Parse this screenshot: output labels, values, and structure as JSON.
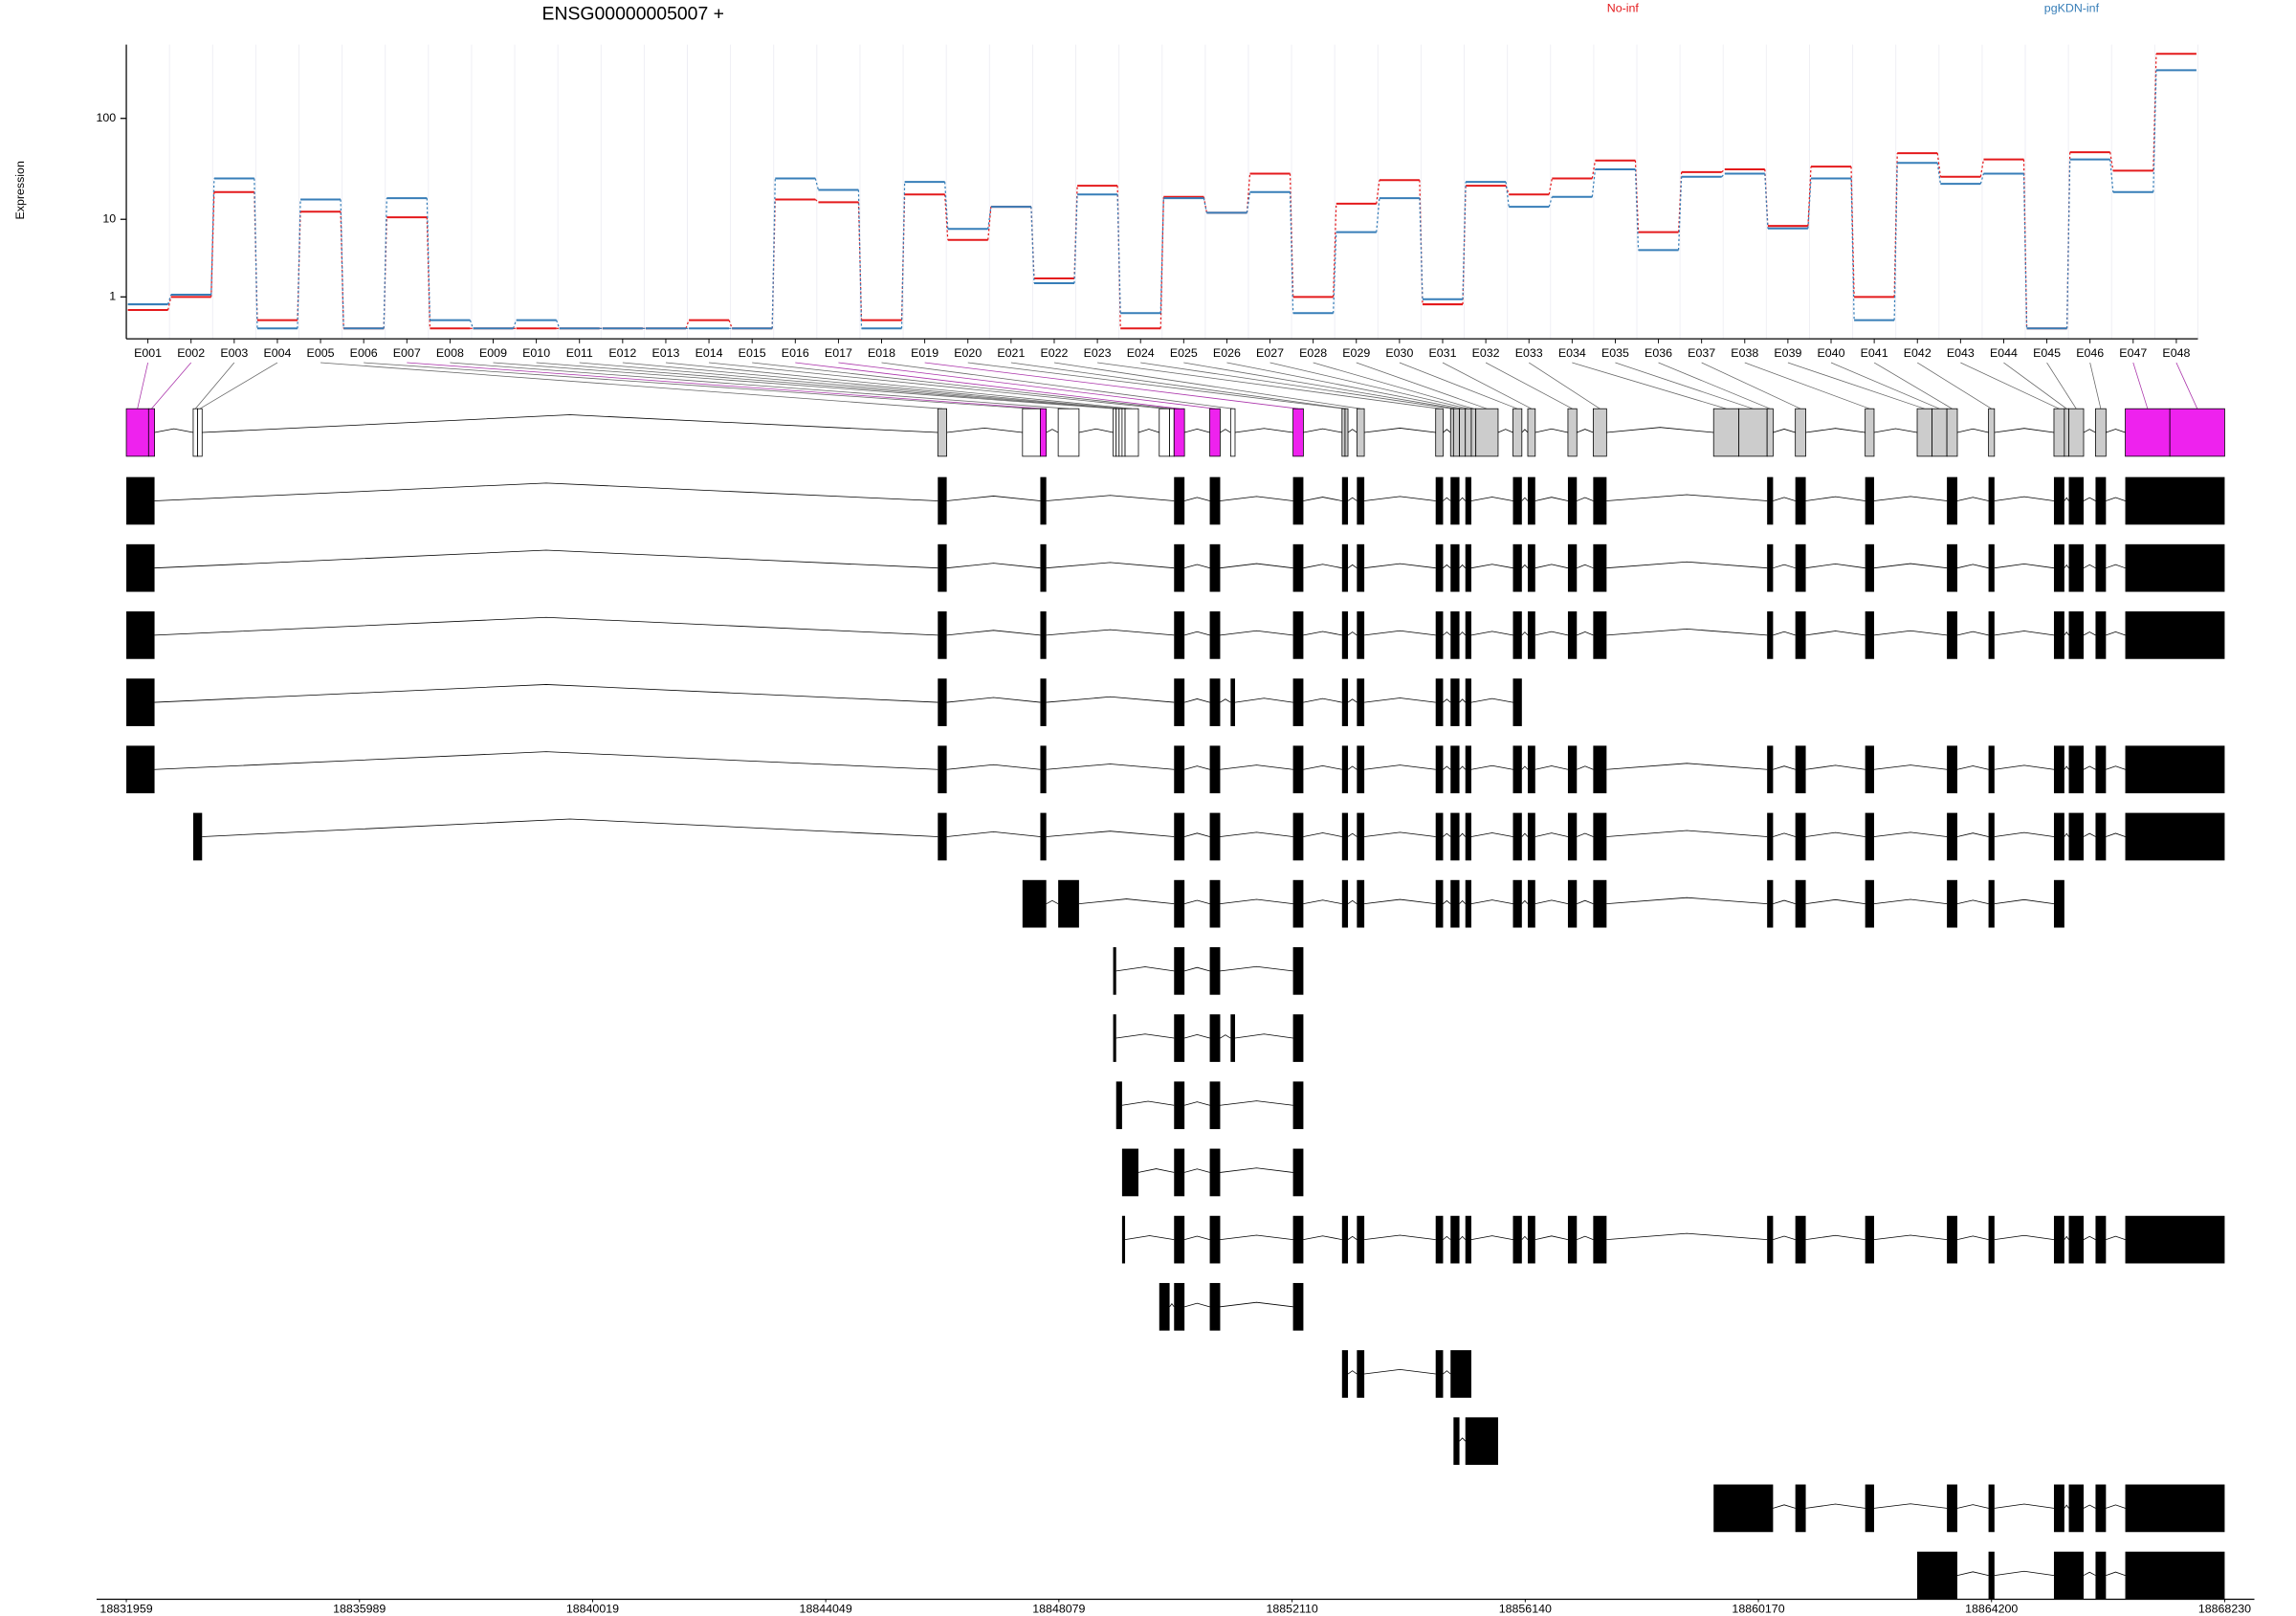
{
  "chart_data": {
    "type": "exon_usage",
    "title": "ENSG00000005007 +",
    "y_label": "Expression",
    "categories": [
      "E001",
      "E002",
      "E003",
      "E004",
      "E005",
      "E006",
      "E007",
      "E008",
      "E009",
      "E010",
      "E011",
      "E012",
      "E013",
      "E014",
      "E015",
      "E016",
      "E017",
      "E018",
      "E019",
      "E020",
      "E021",
      "E022",
      "E023",
      "E024",
      "E025",
      "E026",
      "E027",
      "E028",
      "E029",
      "E030",
      "E031",
      "E032",
      "E033",
      "E034",
      "E035",
      "E036",
      "E037",
      "E038",
      "E039",
      "E040",
      "E041",
      "E042",
      "E043",
      "E044",
      "E045",
      "E046",
      "E047",
      "E048"
    ],
    "series": [
      {
        "name": "No-inf",
        "color": "#e41a1c",
        "values": [
          0.5,
          1.0,
          19,
          0.2,
          12,
          0,
          10.5,
          0,
          0,
          0,
          0,
          0,
          0,
          0.2,
          0,
          16,
          15,
          0.2,
          18,
          6,
          13.5,
          2.0,
          22,
          0,
          17,
          11.7,
          29,
          1.0,
          14.5,
          25,
          0.7,
          22,
          18,
          26,
          39,
          7.3,
          30,
          32,
          8.5,
          34,
          1.0,
          46,
          27,
          40,
          0,
          47,
          31,
          416
        ]
      },
      {
        "name": "pgKDN-inf",
        "color": "#377eb8",
        "values": [
          0.7,
          1.1,
          26,
          0,
          16,
          0,
          16.5,
          0.2,
          0,
          0.2,
          0,
          0,
          0,
          0,
          0,
          26,
          20,
          0,
          24,
          7.9,
          13.5,
          1.7,
          18,
          0.4,
          16.5,
          11.7,
          19,
          0.4,
          7.3,
          16.5,
          0.9,
          24,
          13.5,
          17,
          32,
          4.6,
          27,
          29,
          8,
          26,
          0.2,
          37,
          23,
          29,
          0,
          40,
          19,
          290
        ]
      }
    ],
    "ylim": [
      0,
      510
    ],
    "yticks": [
      1,
      10,
      100
    ],
    "log_offset": 1,
    "grid": true,
    "xlim": [
      18831959,
      18868230
    ],
    "xticks": [
      18831959,
      18835989,
      18840019,
      18844049,
      18848079,
      18852110,
      18856140,
      18860170,
      18864200,
      18868230
    ],
    "exon_bins": [
      {
        "start": 18831959,
        "end": 18832344,
        "color": "#ee22ee"
      },
      {
        "start": 18832344,
        "end": 18832447,
        "color": "#ee22ee"
      },
      {
        "start": 18833115,
        "end": 18833192,
        "color": "#ffffff"
      },
      {
        "start": 18833192,
        "end": 18833269,
        "color": "#ffffff"
      },
      {
        "start": 18845986,
        "end": 18846140,
        "color": "#cccccc"
      },
      {
        "start": 18847450,
        "end": 18847758,
        "color": "#ffffff"
      },
      {
        "start": 18847758,
        "end": 18847861,
        "color": "#ee22ee"
      },
      {
        "start": 18848067,
        "end": 18848427,
        "color": "#ffffff"
      },
      {
        "start": 18849017,
        "end": 18849069,
        "color": "#ffffff"
      },
      {
        "start": 18849069,
        "end": 18849120,
        "color": "#ffffff"
      },
      {
        "start": 18849120,
        "end": 18849171,
        "color": "#ffffff"
      },
      {
        "start": 18849171,
        "end": 18849223,
        "color": "#ffffff"
      },
      {
        "start": 18849223,
        "end": 18849454,
        "color": "#ffffff"
      },
      {
        "start": 18849814,
        "end": 18849993,
        "color": "#ffffff"
      },
      {
        "start": 18849993,
        "end": 18850070,
        "color": "#ffffff"
      },
      {
        "start": 18850070,
        "end": 18850250,
        "color": "#ee22ee"
      },
      {
        "start": 18850687,
        "end": 18850867,
        "color": "#ee22ee"
      },
      {
        "start": 18851047,
        "end": 18851124,
        "color": "#ffffff"
      },
      {
        "start": 18852126,
        "end": 18852305,
        "color": "#ee22ee"
      },
      {
        "start": 18852973,
        "end": 18853025,
        "color": "#cccccc"
      },
      {
        "start": 18853025,
        "end": 18853076,
        "color": "#cccccc"
      },
      {
        "start": 18853230,
        "end": 18853358,
        "color": "#cccccc"
      },
      {
        "start": 18854592,
        "end": 18854720,
        "color": "#cccccc"
      },
      {
        "start": 18854849,
        "end": 18854900,
        "color": "#cccccc"
      },
      {
        "start": 18854900,
        "end": 18855003,
        "color": "#cccccc"
      },
      {
        "start": 18855003,
        "end": 18855105,
        "color": "#cccccc"
      },
      {
        "start": 18855105,
        "end": 18855208,
        "color": "#cccccc"
      },
      {
        "start": 18855208,
        "end": 18855286,
        "color": "#cccccc"
      },
      {
        "start": 18855286,
        "end": 18855671,
        "color": "#cccccc"
      },
      {
        "start": 18855928,
        "end": 18856082,
        "color": "#cccccc"
      },
      {
        "start": 18856184,
        "end": 18856313,
        "color": "#cccccc"
      },
      {
        "start": 18856878,
        "end": 18857032,
        "color": "#cccccc"
      },
      {
        "start": 18857315,
        "end": 18857546,
        "color": "#cccccc"
      },
      {
        "start": 18859396,
        "end": 18859833,
        "color": "#cccccc"
      },
      {
        "start": 18859833,
        "end": 18860321,
        "color": "#cccccc"
      },
      {
        "start": 18860321,
        "end": 18860424,
        "color": "#cccccc"
      },
      {
        "start": 18860809,
        "end": 18860989,
        "color": "#cccccc"
      },
      {
        "start": 18862016,
        "end": 18862170,
        "color": "#cccccc"
      },
      {
        "start": 18862915,
        "end": 18863172,
        "color": "#cccccc"
      },
      {
        "start": 18863172,
        "end": 18863429,
        "color": "#cccccc"
      },
      {
        "start": 18863429,
        "end": 18863609,
        "color": "#cccccc"
      },
      {
        "start": 18864148,
        "end": 18864251,
        "color": "#cccccc"
      },
      {
        "start": 18865279,
        "end": 18865459,
        "color": "#cccccc"
      },
      {
        "start": 18865459,
        "end": 18865536,
        "color": "#cccccc"
      },
      {
        "start": 18865536,
        "end": 18865792,
        "color": "#cccccc"
      },
      {
        "start": 18865998,
        "end": 18866178,
        "color": "#cccccc"
      },
      {
        "start": 18866512,
        "end": 18867283,
        "color": "#ee22ee"
      },
      {
        "start": 18867283,
        "end": 18868230,
        "color": "#ee22ee"
      }
    ],
    "transcripts": [
      [
        0,
        1,
        4,
        6,
        15,
        16,
        18,
        19,
        20,
        21,
        22,
        23,
        24,
        26,
        29,
        30,
        31,
        32,
        35,
        36,
        37,
        40,
        41,
        42,
        44,
        45,
        46,
        47
      ],
      [
        0,
        1,
        4,
        6,
        15,
        16,
        18,
        19,
        20,
        21,
        22,
        23,
        24,
        26,
        29,
        30,
        31,
        32,
        35,
        36,
        37,
        40,
        41,
        42,
        44,
        45,
        46,
        47
      ],
      [
        0,
        1,
        4,
        6,
        15,
        16,
        18,
        19,
        20,
        21,
        22,
        23,
        24,
        26,
        29,
        30,
        31,
        32,
        35,
        36,
        37,
        40,
        41,
        42,
        44,
        45,
        46,
        47
      ],
      [
        0,
        1,
        4,
        6,
        15,
        16,
        17,
        18,
        19,
        20,
        21,
        22,
        23,
        24,
        26,
        29
      ],
      [
        0,
        1,
        4,
        6,
        15,
        16,
        18,
        19,
        20,
        21,
        22,
        23,
        24,
        26,
        29,
        30,
        31,
        32,
        35,
        36,
        37,
        40,
        41,
        42,
        44,
        45,
        46,
        47
      ],
      [
        2,
        3,
        4,
        6,
        15,
        16,
        18,
        19,
        20,
        21,
        22,
        23,
        24,
        26,
        29,
        30,
        31,
        32,
        35,
        36,
        37,
        40,
        41,
        42,
        44,
        45,
        46,
        47
      ],
      [
        5,
        6,
        7,
        15,
        16,
        18,
        19,
        20,
        21,
        22,
        23,
        24,
        26,
        29,
        30,
        31,
        32,
        35,
        36,
        37,
        40,
        41,
        42
      ],
      [
        8,
        15,
        16,
        18
      ],
      [
        8,
        15,
        16,
        17,
        18
      ],
      [
        9,
        10,
        15,
        16,
        18
      ],
      [
        11,
        12,
        15,
        16,
        18
      ],
      [
        11,
        15,
        16,
        18,
        19,
        20,
        21,
        22,
        23,
        24,
        26,
        29,
        30,
        31,
        32,
        35,
        36,
        37,
        40,
        41,
        42,
        44,
        45,
        46,
        47
      ],
      [
        13,
        15,
        16,
        18
      ],
      [
        19,
        20,
        21,
        22,
        23,
        24,
        25,
        26
      ],
      [
        24,
        26,
        27,
        28
      ],
      [
        33,
        34,
        35,
        36,
        37,
        40,
        41,
        42,
        44,
        45,
        46,
        47
      ],
      [
        38,
        39,
        40,
        41,
        42,
        43,
        44,
        45,
        46,
        47
      ]
    ]
  }
}
